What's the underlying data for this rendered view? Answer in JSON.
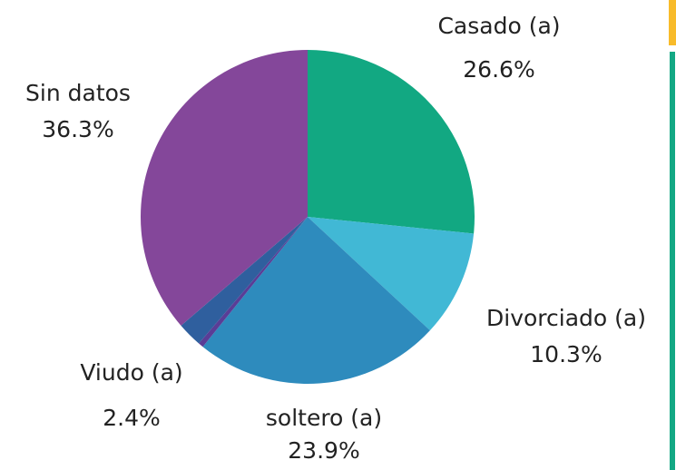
{
  "chart_data": {
    "type": "pie",
    "categories": [
      "Casado (a)",
      "Divorciado (a)",
      "soltero (a)",
      null,
      "Viudo (a)",
      "Sin datos"
    ],
    "values": [
      26.6,
      10.3,
      23.9,
      0.5,
      2.4,
      36.3
    ],
    "value_labels": [
      "26.6%",
      "10.3%",
      "23.9%",
      null,
      "2.4%",
      "36.3%"
    ],
    "colors": [
      "#12a882",
      "#41b8d5",
      "#2e8bbd",
      "#5a3d96",
      "#2f5f9e",
      "#84479a"
    ]
  }
}
